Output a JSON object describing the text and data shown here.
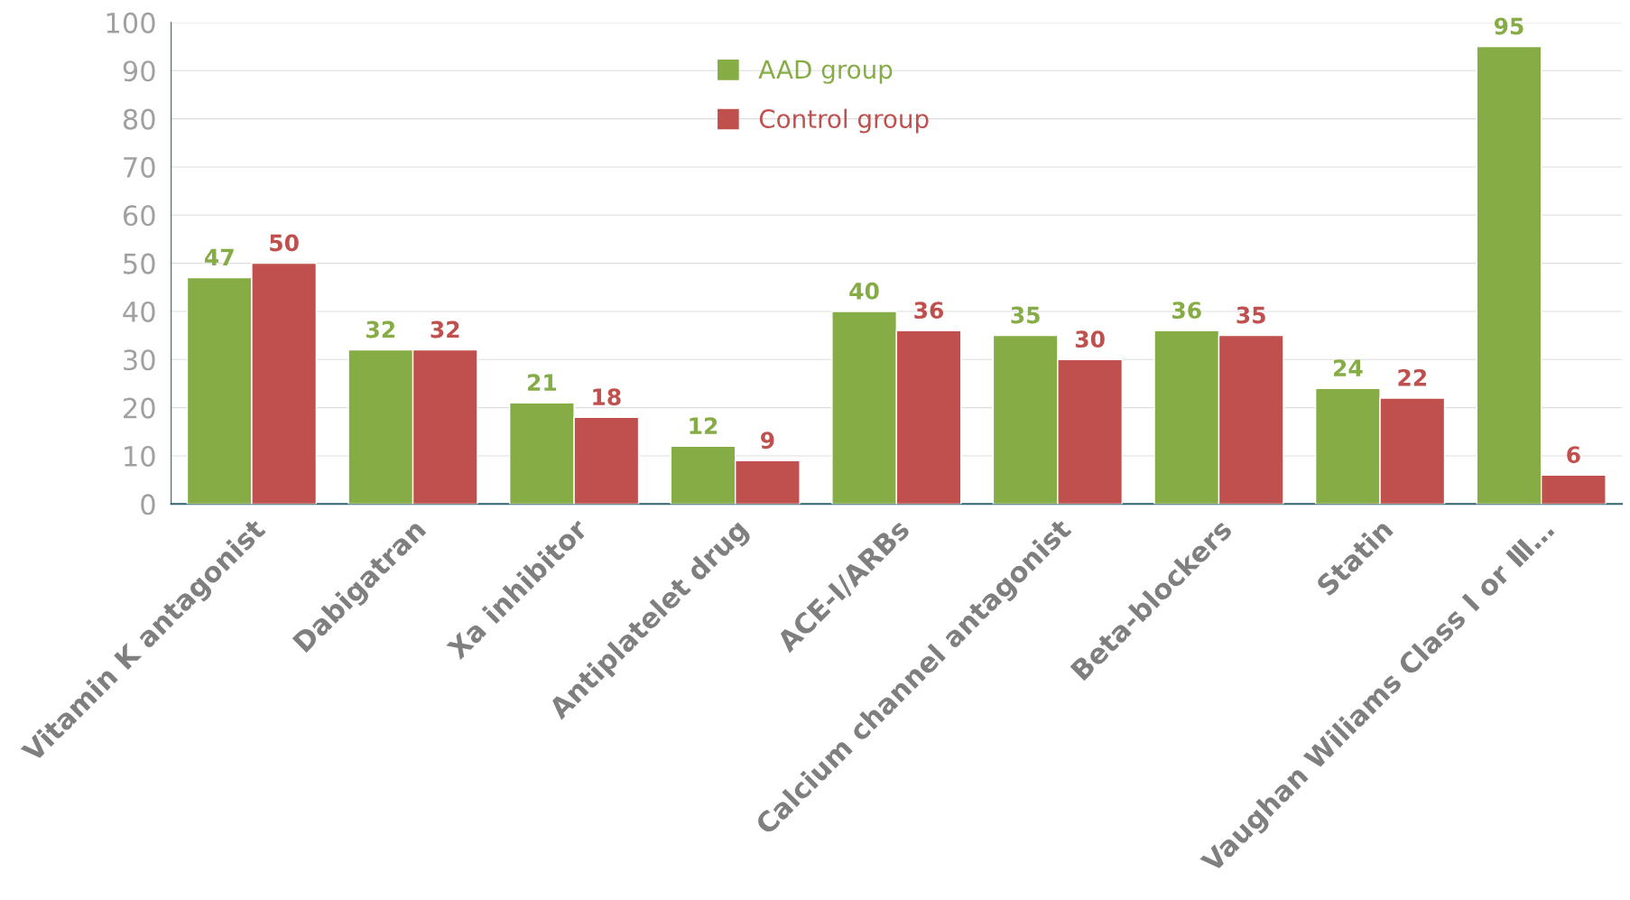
{
  "chart_data": {
    "type": "bar",
    "categories": [
      "Vitamin K antagonist",
      "Dabigatran",
      "Xa inhibitor",
      "Antiplatelet drug",
      "ACE-I/ARBs",
      "Calcium channel antagonist",
      "Beta-blockers",
      "Statin",
      "Vaughan Wiliams Class Ⅰ or Ⅲ…"
    ],
    "series": [
      {
        "name": "AAD group",
        "color": "#86ac45",
        "values": [
          47,
          32,
          21,
          12,
          40,
          35,
          36,
          24,
          95
        ]
      },
      {
        "name": "Control group",
        "color": "#c0504d",
        "values": [
          50,
          32,
          18,
          9,
          36,
          30,
          35,
          22,
          6
        ]
      }
    ],
    "ylim": [
      0,
      100
    ],
    "yticks": [
      0,
      10,
      20,
      30,
      40,
      50,
      60,
      70,
      80,
      90,
      100
    ],
    "grid": "y",
    "legend": "top",
    "data_labels": true
  }
}
